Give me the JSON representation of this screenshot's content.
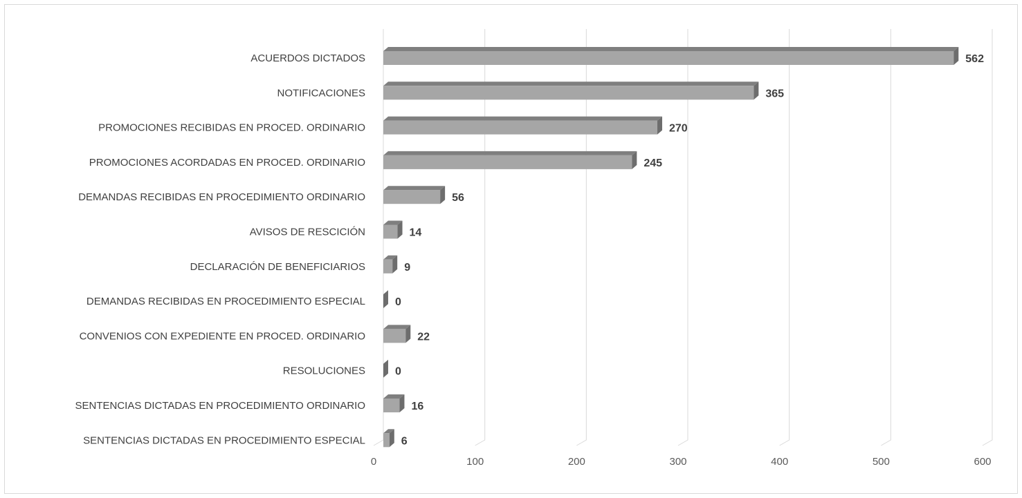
{
  "chart_data": {
    "type": "bar",
    "orientation": "horizontal",
    "style": "3d",
    "title": "",
    "xlabel": "",
    "ylabel": "",
    "xlim": [
      0,
      600
    ],
    "x_ticks": [
      "0",
      "100",
      "200",
      "300",
      "400",
      "500",
      "600"
    ],
    "grid": "vertical",
    "legend": "none",
    "colors": {
      "bar_front": "#a6a6a6",
      "bar_top": "#7f7f7f",
      "bar_side": "#6d6d6d",
      "grid": "#d9d9d9"
    },
    "categories": [
      "ACUERDOS DICTADOS",
      "NOTIFICACIONES",
      "PROMOCIONES RECIBIDAS EN PROCED. ORDINARIO",
      "PROMOCIONES ACORDADAS EN PROCED. ORDINARIO",
      "DEMANDAS RECIBIDAS EN PROCEDIMIENTO ORDINARIO",
      "AVISOS DE RESCICIÓN",
      "DECLARACIÓN DE BENEFICIARIOS",
      "DEMANDAS RECIBIDAS EN PROCEDIMIENTO ESPECIAL",
      "CONVENIOS CON EXPEDIENTE EN PROCED. ORDINARIO",
      "RESOLUCIONES",
      "SENTENCIAS DICTADAS EN PROCEDIMIENTO ORDINARIO",
      "SENTENCIAS DICTADAS EN PROCEDIMIENTO ESPECIAL"
    ],
    "values": [
      562,
      365,
      270,
      245,
      56,
      14,
      9,
      0,
      22,
      0,
      16,
      6
    ],
    "data_labels": [
      "562",
      "365",
      "270",
      "245",
      "56",
      "14",
      "9",
      "0",
      "22",
      "0",
      "16",
      "6"
    ]
  }
}
